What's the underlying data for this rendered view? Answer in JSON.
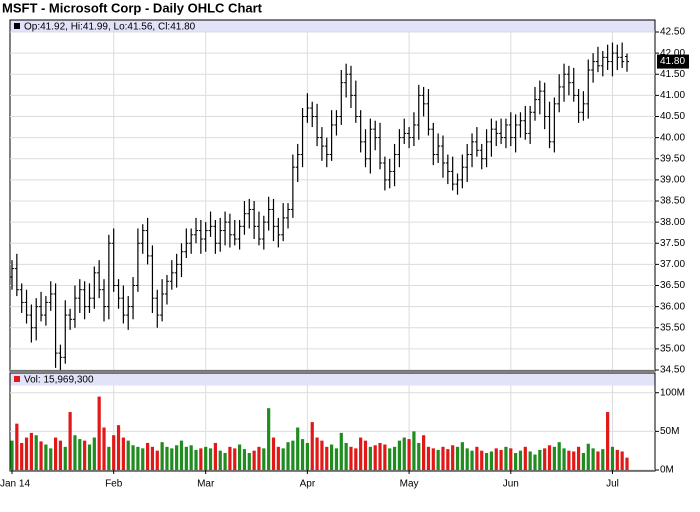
{
  "chart_data": {
    "type": "ohlc",
    "title": "MSFT - Microsoft Corp - Daily OHLC Chart",
    "subtitle": "Op:41.92, Hi:41.99, Lo:41.56, Cl:41.80",
    "last_price_label": "41.80",
    "volume_title": "Vol: 15,969,300",
    "categories": [
      "Jan 14",
      null,
      null,
      null,
      null,
      null,
      null,
      null,
      null,
      null,
      null,
      null,
      null,
      null,
      null,
      null,
      null,
      null,
      null,
      null,
      null,
      "Feb",
      null,
      null,
      null,
      null,
      null,
      null,
      null,
      null,
      null,
      null,
      null,
      null,
      null,
      null,
      null,
      null,
      null,
      null,
      "Mar",
      null,
      null,
      null,
      null,
      null,
      null,
      null,
      null,
      null,
      null,
      null,
      null,
      null,
      null,
      null,
      null,
      null,
      null,
      null,
      null,
      "Apr",
      null,
      null,
      null,
      null,
      null,
      null,
      null,
      null,
      null,
      null,
      null,
      null,
      null,
      null,
      null,
      null,
      null,
      null,
      null,
      null,
      "May",
      null,
      null,
      null,
      null,
      null,
      null,
      null,
      null,
      null,
      null,
      null,
      null,
      null,
      null,
      null,
      null,
      null,
      null,
      null,
      null,
      "Jun",
      null,
      null,
      null,
      null,
      null,
      null,
      null,
      null,
      null,
      null,
      null,
      null,
      null,
      null,
      null,
      null,
      null,
      null,
      null,
      null,
      "Jul",
      null,
      null,
      null
    ],
    "open": [
      36.7,
      36.9,
      36.4,
      36.1,
      35.8,
      35.5,
      36.0,
      35.8,
      36.1,
      36.3,
      34.9,
      34.8,
      35.8,
      35.7,
      36.2,
      36.4,
      36.0,
      36.2,
      36.8,
      36.4,
      36.0,
      37.5,
      36.5,
      36.2,
      35.8,
      36.0,
      36.5,
      37.5,
      37.8,
      37.2,
      36.2,
      35.8,
      36.3,
      36.6,
      36.8,
      37.0,
      37.3,
      37.5,
      37.7,
      37.8,
      37.6,
      37.8,
      37.9,
      37.5,
      37.8,
      38.0,
      37.7,
      37.6,
      37.9,
      38.2,
      38.3,
      37.9,
      37.6,
      38.0,
      38.3,
      37.9,
      37.7,
      38.1,
      38.3,
      39.3,
      39.6,
      40.5,
      40.7,
      40.5,
      40.0,
      39.8,
      39.6,
      40.3,
      40.5,
      41.3,
      41.5,
      41.0,
      40.5,
      39.9,
      39.5,
      40.2,
      40.0,
      39.4,
      39.0,
      39.2,
      39.6,
      40.0,
      40.1,
      40.0,
      40.3,
      41.0,
      40.8,
      40.2,
      39.6,
      39.8,
      39.4,
      39.2,
      38.9,
      39.0,
      39.3,
      39.6,
      39.9,
      39.7,
      39.5,
      39.9,
      40.2,
      40.1,
      40.0,
      40.3,
      40.0,
      40.3,
      40.4,
      40.1,
      40.6,
      40.9,
      41.1,
      40.5,
      39.9,
      40.8,
      41.2,
      41.5,
      41.3,
      41.0,
      40.6,
      40.8,
      41.6,
      41.8,
      41.7,
      41.9,
      41.8,
      42.0,
      41.9,
      41.92
    ],
    "high": [
      37.1,
      37.25,
      36.55,
      36.4,
      36.05,
      36.2,
      36.35,
      36.25,
      36.6,
      36.55,
      35.1,
      36.15,
      35.95,
      36.5,
      36.65,
      36.6,
      36.55,
      36.95,
      37.1,
      36.65,
      37.7,
      37.85,
      36.65,
      36.5,
      36.25,
      36.7,
      37.85,
      37.95,
      38.1,
      37.45,
      36.4,
      36.65,
      36.75,
      37.1,
      37.25,
      37.5,
      37.85,
      37.85,
      38.1,
      38.05,
      38.0,
      38.25,
      38.05,
      38.1,
      38.25,
      38.2,
      38.05,
      38.05,
      38.5,
      38.55,
      38.5,
      38.25,
      38.15,
      38.6,
      38.55,
      38.1,
      38.45,
      38.45,
      39.6,
      39.85,
      40.7,
      41.05,
      40.85,
      40.8,
      40.25,
      40.0,
      40.65,
      40.65,
      41.6,
      41.75,
      41.7,
      41.35,
      40.65,
      40.2,
      40.45,
      40.4,
      40.35,
      39.55,
      39.5,
      39.85,
      40.2,
      40.45,
      40.25,
      40.6,
      41.25,
      41.2,
      41.15,
      40.35,
      40.1,
      40.05,
      39.6,
      39.55,
      39.15,
      39.6,
      39.85,
      40.1,
      40.25,
      39.85,
      40.2,
      40.45,
      40.4,
      40.45,
      40.45,
      40.6,
      40.55,
      40.6,
      40.75,
      40.75,
      41.2,
      41.35,
      41.3,
      40.85,
      40.95,
      41.5,
      41.75,
      41.7,
      41.65,
      41.15,
      41.1,
      41.85,
      42.0,
      42.15,
      42.05,
      42.2,
      42.25,
      42.2,
      42.25,
      41.99
    ],
    "low": [
      36.4,
      36.25,
      35.85,
      35.6,
      35.15,
      35.2,
      35.65,
      35.55,
      35.9,
      34.55,
      34.5,
      34.65,
      35.45,
      35.5,
      35.85,
      35.7,
      35.85,
      35.95,
      36.2,
      35.65,
      35.7,
      36.35,
      35.95,
      35.6,
      35.45,
      35.7,
      36.35,
      37.25,
      37.0,
      35.85,
      35.5,
      35.65,
      36.05,
      36.4,
      36.45,
      36.7,
      37.15,
      37.25,
      37.5,
      37.25,
      37.3,
      37.65,
      37.25,
      37.3,
      37.45,
      37.4,
      37.45,
      37.35,
      37.7,
      37.85,
      37.6,
      37.45,
      37.35,
      37.8,
      37.55,
      37.4,
      37.55,
      37.85,
      38.1,
      38.95,
      39.3,
      40.35,
      40.25,
      39.8,
      39.45,
      39.3,
      39.45,
      40.05,
      40.3,
      40.95,
      40.7,
      40.35,
      39.65,
      39.3,
      39.15,
      39.7,
      39.25,
      38.75,
      38.8,
      38.85,
      39.3,
      39.85,
      39.75,
      39.8,
      39.95,
      40.5,
      40.05,
      39.35,
      39.4,
      39.05,
      38.9,
      38.75,
      38.65,
      38.8,
      38.95,
      39.3,
      39.55,
      39.25,
      39.3,
      39.55,
      39.8,
      39.85,
      39.75,
      39.8,
      39.65,
      40.0,
      39.95,
      39.85,
      40.4,
      40.55,
      40.2,
      39.75,
      39.65,
      40.6,
      40.85,
      41.0,
      40.85,
      40.35,
      40.4,
      40.45,
      41.3,
      41.55,
      41.45,
      41.6,
      41.45,
      41.6,
      41.65,
      41.56
    ],
    "close": [
      36.9,
      36.4,
      36.1,
      35.8,
      35.5,
      36.0,
      35.8,
      36.1,
      36.3,
      34.9,
      34.8,
      35.8,
      35.7,
      36.2,
      36.4,
      36.0,
      36.2,
      36.8,
      36.4,
      36.0,
      37.5,
      36.5,
      36.2,
      35.8,
      36.0,
      36.5,
      37.5,
      37.8,
      37.2,
      36.2,
      35.8,
      36.3,
      36.6,
      36.8,
      37.0,
      37.3,
      37.5,
      37.7,
      37.8,
      37.6,
      37.8,
      37.9,
      37.5,
      37.8,
      38.0,
      37.7,
      37.6,
      37.9,
      38.2,
      38.3,
      37.9,
      37.6,
      38.0,
      38.3,
      37.9,
      37.7,
      38.1,
      38.3,
      39.3,
      39.6,
      40.5,
      40.7,
      40.5,
      40.0,
      39.8,
      39.6,
      40.3,
      40.5,
      41.3,
      41.5,
      41.0,
      40.5,
      39.9,
      39.5,
      40.2,
      40.0,
      39.4,
      39.0,
      39.2,
      39.6,
      40.0,
      40.1,
      40.0,
      40.3,
      41.0,
      40.8,
      40.2,
      39.6,
      39.8,
      39.4,
      39.2,
      38.9,
      39.0,
      39.3,
      39.6,
      39.9,
      39.7,
      39.5,
      39.9,
      40.2,
      40.1,
      40.0,
      40.3,
      40.0,
      40.3,
      40.4,
      40.1,
      40.6,
      40.9,
      41.1,
      40.5,
      39.9,
      40.8,
      41.2,
      41.5,
      41.3,
      41.0,
      40.6,
      40.8,
      41.6,
      41.8,
      41.7,
      41.9,
      41.8,
      42.0,
      41.9,
      41.8,
      41.8
    ],
    "volume": [
      38,
      60,
      35,
      42,
      48,
      45,
      37,
      33,
      28,
      42,
      38,
      30,
      75,
      45,
      40,
      38,
      33,
      42,
      95,
      55,
      30,
      45,
      58,
      42,
      38,
      32,
      30,
      28,
      35,
      30,
      25,
      36,
      30,
      28,
      32,
      38,
      30,
      32,
      26,
      28,
      30,
      28,
      35,
      25,
      22,
      30,
      28,
      33,
      27,
      22,
      25,
      30,
      28,
      80,
      42,
      30,
      28,
      36,
      38,
      55,
      40,
      35,
      62,
      42,
      38,
      30,
      33,
      28,
      48,
      35,
      30,
      28,
      42,
      38,
      30,
      32,
      35,
      33,
      28,
      30,
      38,
      42,
      40,
      50,
      35,
      45,
      30,
      28,
      26,
      30,
      27,
      32,
      30,
      36,
      28,
      25,
      30,
      25,
      22,
      24,
      28,
      26,
      30,
      28,
      22,
      25,
      30,
      24,
      20,
      26,
      28,
      32,
      30,
      36,
      28,
      25,
      24,
      30,
      22,
      34,
      28,
      24,
      27,
      75,
      30,
      26,
      24,
      15.9693
    ],
    "bar_color": "#000000",
    "up_color": "#1e8c1e",
    "down_color": "#e01818",
    "grid": true,
    "ylim": [
      34.5,
      42.5
    ],
    "yticks": [
      {
        "value": 34.5,
        "label": "34.50"
      },
      {
        "value": 35,
        "label": "35.00"
      },
      {
        "value": 35.5,
        "label": "35.50"
      },
      {
        "value": 36,
        "label": "36.00"
      },
      {
        "value": 36.5,
        "label": "36.50"
      },
      {
        "value": 37,
        "label": "37.00"
      },
      {
        "value": 37.5,
        "label": "37.50"
      },
      {
        "value": 38,
        "label": "38.00"
      },
      {
        "value": 38.5,
        "label": "38.50"
      },
      {
        "value": 39,
        "label": "39.00"
      },
      {
        "value": 39.5,
        "label": "39.50"
      },
      {
        "value": 40,
        "label": "40.00"
      },
      {
        "value": 40.5,
        "label": "40.50"
      },
      {
        "value": 41,
        "label": "41.00"
      },
      {
        "value": 41.5,
        "label": "41.50"
      },
      {
        "value": 42,
        "label": "42.00"
      },
      {
        "value": 42.5,
        "label": "42.50"
      }
    ],
    "volume_ylim": [
      0,
      110
    ],
    "volume_yticks": [
      {
        "value": 0,
        "label": "0M"
      },
      {
        "value": 50,
        "label": "50M"
      },
      {
        "value": 100,
        "label": "100M"
      }
    ]
  }
}
